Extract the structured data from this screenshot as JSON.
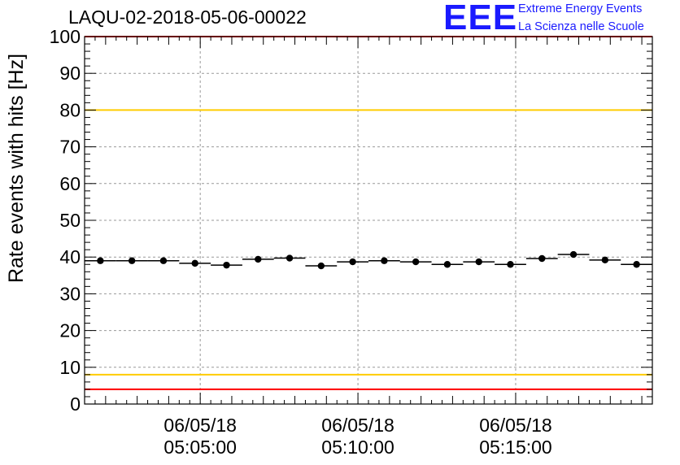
{
  "title": "LAQU-02-2018-05-06-00022",
  "logo": {
    "mark": "EEE",
    "line1": "Extreme Energy Events",
    "line2": "La Scienza nelle Scuole"
  },
  "colors": {
    "red_limit": "#ff0000",
    "yellow_limit": "#ffcc00",
    "data": "#000000",
    "logo": "#1a1aff"
  },
  "chart_data": {
    "type": "scatter",
    "ylabel": "Rate events with hits [Hz]",
    "xlabel": "",
    "ylim": [
      0,
      100
    ],
    "xlim": [
      "2018-05-06 05:01:20",
      "2018-05-06 05:19:20"
    ],
    "grid": true,
    "x_ticks": [
      {
        "date": "06/05/18",
        "time": "05:05:00"
      },
      {
        "date": "06/05/18",
        "time": "05:10:00"
      },
      {
        "date": "06/05/18",
        "time": "05:15:00"
      }
    ],
    "y_ticks": [
      0,
      10,
      20,
      30,
      40,
      50,
      60,
      70,
      80,
      90,
      100
    ],
    "reference_lines": [
      {
        "y": 100,
        "color": "red"
      },
      {
        "y": 4,
        "color": "red"
      },
      {
        "y": 80,
        "color": "yellow"
      },
      {
        "y": 8,
        "color": "yellow"
      }
    ],
    "bin_width_s": 60,
    "points": [
      {
        "x": "2018-05-06 05:01:50",
        "y": 39.0
      },
      {
        "x": "2018-05-06 05:02:50",
        "y": 39.0
      },
      {
        "x": "2018-05-06 05:03:50",
        "y": 39.0
      },
      {
        "x": "2018-05-06 05:04:50",
        "y": 38.3
      },
      {
        "x": "2018-05-06 05:05:50",
        "y": 37.8
      },
      {
        "x": "2018-05-06 05:06:50",
        "y": 39.4
      },
      {
        "x": "2018-05-06 05:07:50",
        "y": 39.7
      },
      {
        "x": "2018-05-06 05:08:50",
        "y": 37.6
      },
      {
        "x": "2018-05-06 05:09:50",
        "y": 38.7
      },
      {
        "x": "2018-05-06 05:10:50",
        "y": 39.0
      },
      {
        "x": "2018-05-06 05:11:50",
        "y": 38.7
      },
      {
        "x": "2018-05-06 05:12:50",
        "y": 38.0
      },
      {
        "x": "2018-05-06 05:13:50",
        "y": 38.7
      },
      {
        "x": "2018-05-06 05:14:50",
        "y": 38.0
      },
      {
        "x": "2018-05-06 05:15:50",
        "y": 39.6
      },
      {
        "x": "2018-05-06 05:16:50",
        "y": 40.7
      },
      {
        "x": "2018-05-06 05:17:50",
        "y": 39.2
      },
      {
        "x": "2018-05-06 05:18:50",
        "y": 38.0
      }
    ]
  }
}
